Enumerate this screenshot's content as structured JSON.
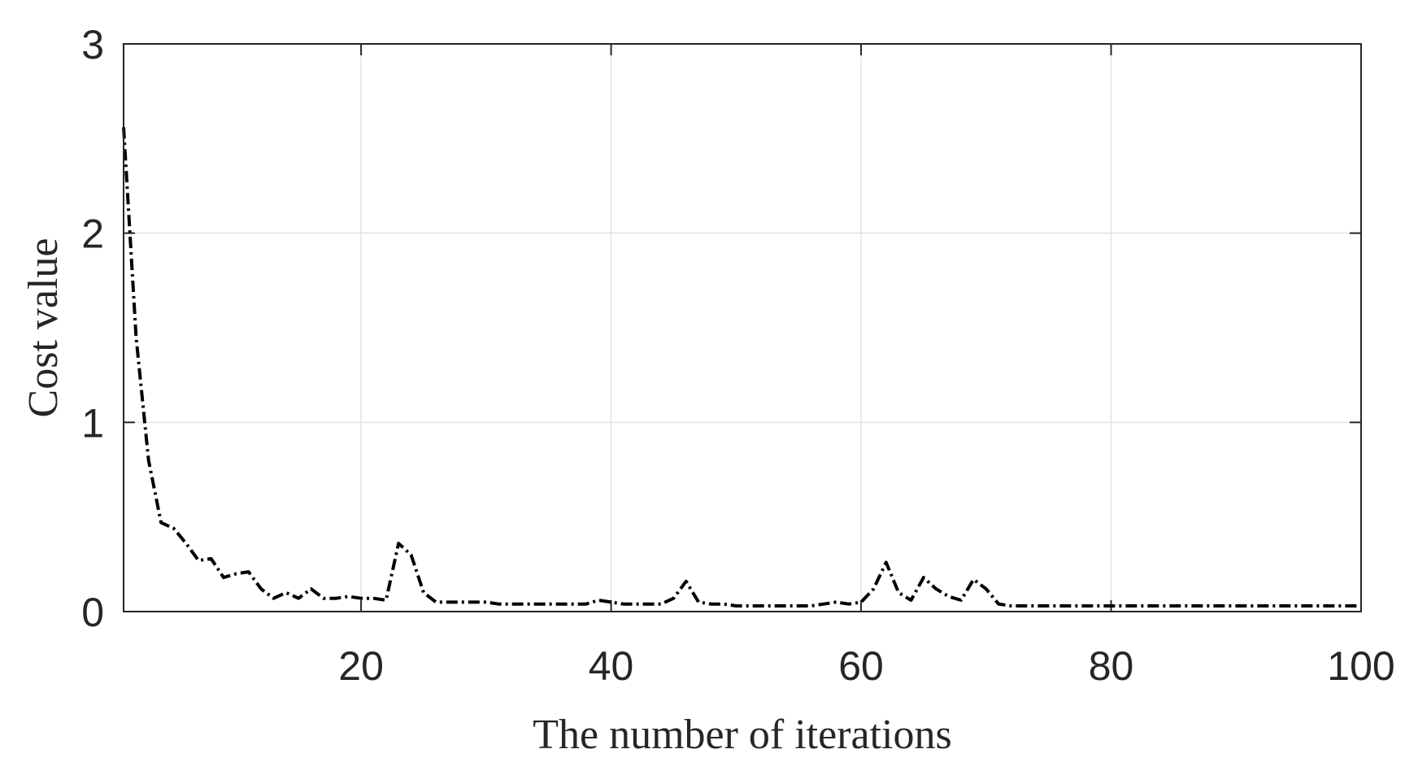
{
  "chart_data": {
    "type": "line",
    "title": "",
    "xlabel": "The number of iterations",
    "ylabel": "Cost value",
    "xlim": [
      1,
      100
    ],
    "ylim": [
      0,
      3
    ],
    "xticks": [
      20,
      40,
      60,
      80,
      100
    ],
    "yticks": [
      0,
      1,
      2,
      3
    ],
    "grid": true,
    "colors": {
      "line": "#000000",
      "axis": "#262626",
      "grid": "#e3e3e3"
    },
    "series": [
      {
        "line_style": "dash-dot",
        "x": [
          1,
          2,
          3,
          4,
          5,
          6,
          7,
          8,
          9,
          10,
          11,
          12,
          13,
          14,
          15,
          16,
          17,
          18,
          19,
          20,
          21,
          22,
          23,
          24,
          25,
          26,
          27,
          28,
          29,
          30,
          31,
          32,
          33,
          34,
          35,
          36,
          37,
          38,
          39,
          40,
          41,
          42,
          43,
          44,
          45,
          46,
          47,
          48,
          49,
          50,
          51,
          52,
          53,
          54,
          55,
          56,
          57,
          58,
          59,
          60,
          61,
          62,
          63,
          64,
          65,
          66,
          67,
          68,
          69,
          70,
          71,
          72,
          73,
          74,
          75,
          76,
          77,
          78,
          79,
          80,
          81,
          82,
          83,
          84,
          85,
          86,
          87,
          88,
          89,
          90,
          91,
          92,
          93,
          94,
          95,
          96,
          97,
          98,
          99,
          100
        ],
        "y": [
          2.56,
          1.45,
          0.8,
          0.47,
          0.44,
          0.36,
          0.27,
          0.28,
          0.18,
          0.2,
          0.21,
          0.12,
          0.07,
          0.1,
          0.07,
          0.12,
          0.07,
          0.07,
          0.08,
          0.07,
          0.07,
          0.06,
          0.36,
          0.3,
          0.1,
          0.05,
          0.05,
          0.05,
          0.05,
          0.05,
          0.04,
          0.04,
          0.04,
          0.04,
          0.04,
          0.04,
          0.04,
          0.04,
          0.06,
          0.05,
          0.04,
          0.04,
          0.04,
          0.04,
          0.07,
          0.16,
          0.05,
          0.04,
          0.04,
          0.03,
          0.03,
          0.03,
          0.03,
          0.03,
          0.03,
          0.03,
          0.04,
          0.05,
          0.04,
          0.05,
          0.12,
          0.26,
          0.1,
          0.06,
          0.18,
          0.12,
          0.08,
          0.06,
          0.17,
          0.12,
          0.04,
          0.03,
          0.03,
          0.03,
          0.03,
          0.03,
          0.03,
          0.03,
          0.03,
          0.03,
          0.03,
          0.03,
          0.03,
          0.03,
          0.03,
          0.03,
          0.03,
          0.03,
          0.03,
          0.03,
          0.03,
          0.03,
          0.03,
          0.03,
          0.03,
          0.03,
          0.03,
          0.03,
          0.03,
          0.03
        ]
      }
    ]
  }
}
